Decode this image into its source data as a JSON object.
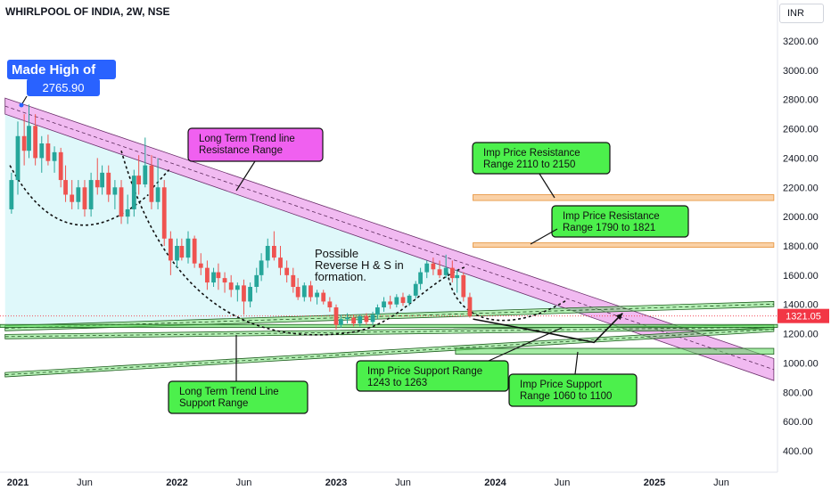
{
  "header": {
    "title": "WHIRLPOOL OF INDIA, 2W, NSE",
    "currency": "INR"
  },
  "colors": {
    "bullish": "#26a69a",
    "bearish": "#ef5350",
    "resistance_channel": "#e066e0",
    "support_channel": "#5bdc5b",
    "resistance_zone": "#f6b26b",
    "cup_fill": "#d4f6f8",
    "label_green": "#4cf04c",
    "label_magenta": "#f060f0",
    "label_blue": "#2962ff",
    "price_tag": "#f23645"
  },
  "chart_data": {
    "type": "candlestick",
    "title": "WHIRLPOOL OF INDIA, 2W, NSE",
    "y_axis_side": "right",
    "ylim": [
      300,
      3400
    ],
    "y_ticks": [
      "400.00",
      "600.00",
      "800.00",
      "1000.00",
      "1200.00",
      "1400.00",
      "1600.00",
      "1800.00",
      "2000.00",
      "2200.00",
      "2400.00",
      "2600.00",
      "2800.00",
      "3000.00",
      "3200.00"
    ],
    "x_ticks": [
      {
        "label": "2021",
        "t": 2021.0
      },
      {
        "label": "Jun",
        "t": 2021.42
      },
      {
        "label": "2022",
        "t": 2022.0
      },
      {
        "label": "Jun",
        "t": 2022.42
      },
      {
        "label": "2023",
        "t": 2023.0
      },
      {
        "label": "Jun",
        "t": 2023.42
      },
      {
        "label": "2024",
        "t": 2024.0
      },
      {
        "label": "Jun",
        "t": 2024.42
      },
      {
        "label": "2025",
        "t": 2025.0
      },
      {
        "label": "Jun",
        "t": 2025.42
      }
    ],
    "last_price": "1321.05",
    "last_price_value": 1321.05,
    "candle_width_years": 0.0383,
    "candles": [
      {
        "t": 2020.96,
        "o": 2050,
        "h": 2300,
        "l": 2020,
        "c": 2250
      },
      {
        "t": 2021.0,
        "o": 2250,
        "h": 2650,
        "l": 2150,
        "c": 2550
      },
      {
        "t": 2021.04,
        "o": 2550,
        "h": 2700,
        "l": 2350,
        "c": 2450
      },
      {
        "t": 2021.07,
        "o": 2450,
        "h": 2766,
        "l": 2400,
        "c": 2620
      },
      {
        "t": 2021.11,
        "o": 2620,
        "h": 2700,
        "l": 2350,
        "c": 2400
      },
      {
        "t": 2021.15,
        "o": 2400,
        "h": 2550,
        "l": 2300,
        "c": 2500
      },
      {
        "t": 2021.19,
        "o": 2500,
        "h": 2560,
        "l": 2350,
        "c": 2380
      },
      {
        "t": 2021.23,
        "o": 2380,
        "h": 2480,
        "l": 2300,
        "c": 2440
      },
      {
        "t": 2021.27,
        "o": 2440,
        "h": 2470,
        "l": 2200,
        "c": 2250
      },
      {
        "t": 2021.3,
        "o": 2250,
        "h": 2350,
        "l": 2100,
        "c": 2150
      },
      {
        "t": 2021.34,
        "o": 2150,
        "h": 2250,
        "l": 2050,
        "c": 2100
      },
      {
        "t": 2021.38,
        "o": 2100,
        "h": 2250,
        "l": 2050,
        "c": 2200
      },
      {
        "t": 2021.42,
        "o": 2200,
        "h": 2250,
        "l": 2000,
        "c": 2050
      },
      {
        "t": 2021.46,
        "o": 2050,
        "h": 2300,
        "l": 2000,
        "c": 2250
      },
      {
        "t": 2021.5,
        "o": 2250,
        "h": 2400,
        "l": 2150,
        "c": 2200
      },
      {
        "t": 2021.53,
        "o": 2200,
        "h": 2350,
        "l": 2150,
        "c": 2300
      },
      {
        "t": 2021.57,
        "o": 2300,
        "h": 2350,
        "l": 2100,
        "c": 2150
      },
      {
        "t": 2021.61,
        "o": 2150,
        "h": 2250,
        "l": 2050,
        "c": 2200
      },
      {
        "t": 2021.65,
        "o": 2200,
        "h": 2250,
        "l": 1950,
        "c": 2000
      },
      {
        "t": 2021.69,
        "o": 2000,
        "h": 2150,
        "l": 1950,
        "c": 2050
      },
      {
        "t": 2021.73,
        "o": 2050,
        "h": 2320,
        "l": 2000,
        "c": 2280
      },
      {
        "t": 2021.76,
        "o": 2280,
        "h": 2420,
        "l": 2150,
        "c": 2220
      },
      {
        "t": 2021.8,
        "o": 2220,
        "h": 2540,
        "l": 2200,
        "c": 2350
      },
      {
        "t": 2021.84,
        "o": 2350,
        "h": 2420,
        "l": 2050,
        "c": 2100
      },
      {
        "t": 2021.88,
        "o": 2100,
        "h": 2400,
        "l": 2050,
        "c": 2200
      },
      {
        "t": 2021.92,
        "o": 2200,
        "h": 2250,
        "l": 1800,
        "c": 1850
      },
      {
        "t": 2021.96,
        "o": 1850,
        "h": 1900,
        "l": 1600,
        "c": 1700
      },
      {
        "t": 2022.0,
        "o": 1700,
        "h": 1850,
        "l": 1650,
        "c": 1800
      },
      {
        "t": 2022.03,
        "o": 1800,
        "h": 1850,
        "l": 1700,
        "c": 1720
      },
      {
        "t": 2022.07,
        "o": 1720,
        "h": 1900,
        "l": 1680,
        "c": 1850
      },
      {
        "t": 2022.11,
        "o": 1850,
        "h": 1870,
        "l": 1650,
        "c": 1680
      },
      {
        "t": 2022.15,
        "o": 1680,
        "h": 1750,
        "l": 1600,
        "c": 1650
      },
      {
        "t": 2022.19,
        "o": 1650,
        "h": 1700,
        "l": 1500,
        "c": 1550
      },
      {
        "t": 2022.23,
        "o": 1550,
        "h": 1650,
        "l": 1520,
        "c": 1620
      },
      {
        "t": 2022.26,
        "o": 1620,
        "h": 1680,
        "l": 1500,
        "c": 1580
      },
      {
        "t": 2022.3,
        "o": 1580,
        "h": 1620,
        "l": 1480,
        "c": 1550
      },
      {
        "t": 2022.34,
        "o": 1550,
        "h": 1600,
        "l": 1450,
        "c": 1500
      },
      {
        "t": 2022.38,
        "o": 1500,
        "h": 1550,
        "l": 1420,
        "c": 1530
      },
      {
        "t": 2022.42,
        "o": 1530,
        "h": 1570,
        "l": 1330,
        "c": 1420
      },
      {
        "t": 2022.46,
        "o": 1420,
        "h": 1550,
        "l": 1380,
        "c": 1520
      },
      {
        "t": 2022.5,
        "o": 1520,
        "h": 1650,
        "l": 1480,
        "c": 1600
      },
      {
        "t": 2022.53,
        "o": 1600,
        "h": 1750,
        "l": 1560,
        "c": 1700
      },
      {
        "t": 2022.57,
        "o": 1700,
        "h": 1850,
        "l": 1650,
        "c": 1800
      },
      {
        "t": 2022.61,
        "o": 1800,
        "h": 1900,
        "l": 1700,
        "c": 1720
      },
      {
        "t": 2022.65,
        "o": 1720,
        "h": 1800,
        "l": 1600,
        "c": 1650
      },
      {
        "t": 2022.69,
        "o": 1650,
        "h": 1700,
        "l": 1550,
        "c": 1600
      },
      {
        "t": 2022.73,
        "o": 1600,
        "h": 1650,
        "l": 1480,
        "c": 1520
      },
      {
        "t": 2022.76,
        "o": 1520,
        "h": 1580,
        "l": 1430,
        "c": 1450
      },
      {
        "t": 2022.8,
        "o": 1450,
        "h": 1550,
        "l": 1420,
        "c": 1530
      },
      {
        "t": 2022.84,
        "o": 1530,
        "h": 1560,
        "l": 1420,
        "c": 1450
      },
      {
        "t": 2022.88,
        "o": 1450,
        "h": 1500,
        "l": 1400,
        "c": 1480
      },
      {
        "t": 2022.92,
        "o": 1480,
        "h": 1500,
        "l": 1400,
        "c": 1420
      },
      {
        "t": 2022.96,
        "o": 1420,
        "h": 1450,
        "l": 1350,
        "c": 1380
      },
      {
        "t": 2023.0,
        "o": 1380,
        "h": 1400,
        "l": 1230,
        "c": 1260
      },
      {
        "t": 2023.03,
        "o": 1260,
        "h": 1330,
        "l": 1240,
        "c": 1300
      },
      {
        "t": 2023.07,
        "o": 1300,
        "h": 1340,
        "l": 1270,
        "c": 1310
      },
      {
        "t": 2023.11,
        "o": 1310,
        "h": 1330,
        "l": 1250,
        "c": 1270
      },
      {
        "t": 2023.15,
        "o": 1270,
        "h": 1330,
        "l": 1250,
        "c": 1320
      },
      {
        "t": 2023.19,
        "o": 1320,
        "h": 1340,
        "l": 1260,
        "c": 1280
      },
      {
        "t": 2023.23,
        "o": 1280,
        "h": 1350,
        "l": 1260,
        "c": 1330
      },
      {
        "t": 2023.26,
        "o": 1330,
        "h": 1400,
        "l": 1300,
        "c": 1380
      },
      {
        "t": 2023.3,
        "o": 1380,
        "h": 1450,
        "l": 1350,
        "c": 1420
      },
      {
        "t": 2023.34,
        "o": 1420,
        "h": 1460,
        "l": 1370,
        "c": 1400
      },
      {
        "t": 2023.38,
        "o": 1400,
        "h": 1470,
        "l": 1380,
        "c": 1450
      },
      {
        "t": 2023.42,
        "o": 1450,
        "h": 1480,
        "l": 1390,
        "c": 1410
      },
      {
        "t": 2023.46,
        "o": 1410,
        "h": 1470,
        "l": 1390,
        "c": 1460
      },
      {
        "t": 2023.5,
        "o": 1460,
        "h": 1560,
        "l": 1440,
        "c": 1540
      },
      {
        "t": 2023.53,
        "o": 1540,
        "h": 1650,
        "l": 1500,
        "c": 1620
      },
      {
        "t": 2023.57,
        "o": 1620,
        "h": 1700,
        "l": 1580,
        "c": 1680
      },
      {
        "t": 2023.61,
        "o": 1680,
        "h": 1720,
        "l": 1600,
        "c": 1640
      },
      {
        "t": 2023.65,
        "o": 1640,
        "h": 1700,
        "l": 1580,
        "c": 1600
      },
      {
        "t": 2023.69,
        "o": 1600,
        "h": 1740,
        "l": 1580,
        "c": 1650
      },
      {
        "t": 2023.73,
        "o": 1650,
        "h": 1700,
        "l": 1550,
        "c": 1580
      },
      {
        "t": 2023.76,
        "o": 1580,
        "h": 1640,
        "l": 1480,
        "c": 1600
      },
      {
        "t": 2023.8,
        "o": 1600,
        "h": 1620,
        "l": 1420,
        "c": 1450
      },
      {
        "t": 2023.84,
        "o": 1450,
        "h": 1480,
        "l": 1310,
        "c": 1321.05
      }
    ],
    "annotations": [
      {
        "id": "made-high",
        "lines": [
          "Made High of",
          "2765.90"
        ]
      },
      {
        "id": "lt-resistance",
        "text": "Long Term Trend line\nResistance Range"
      },
      {
        "id": "possible-hs",
        "text": "Possible\nReverse H & S in\nformation."
      },
      {
        "id": "res-2110",
        "text": "Imp Price Resistance\nRange 2110 to 2150"
      },
      {
        "id": "res-1790",
        "text": "Imp Price Resistance\nRange 1790 to 1821"
      },
      {
        "id": "sup-1243",
        "text": "Imp Price Support Range\n1243 to 1263"
      },
      {
        "id": "sup-1060",
        "text": "Imp Price Support\nRange 1060 to 1100"
      },
      {
        "id": "lt-support",
        "text": "Long Term Trend Line\nSupport Range"
      }
    ],
    "resistance_zones": [
      {
        "low": 2110,
        "high": 2150,
        "t_start": 2023.86,
        "t_end": 2025.75
      },
      {
        "low": 1790,
        "high": 1821,
        "t_start": 2023.86,
        "t_end": 2025.75
      }
    ],
    "support_zones": [
      {
        "low": 1060,
        "high": 1100,
        "t_start": 2023.75,
        "t_end": 2025.75
      }
    ],
    "support_line": {
      "low": 1243,
      "high": 1263
    },
    "trend_resistance_channel": {
      "t1": 2020.92,
      "upper1": 2810,
      "lower1": 2700,
      "t2": 2025.75,
      "upper2": 1030,
      "lower2": 880
    },
    "trend_support_channels": [
      {
        "t1": 2020.92,
        "upper1": 1255,
        "lower1": 1220,
        "t2": 2025.75,
        "upper2": 1420,
        "lower2": 1385
      },
      {
        "t1": 2020.92,
        "upper1": 1195,
        "lower1": 1165,
        "t2": 2025.75,
        "upper2": 1260,
        "lower2": 1230
      },
      {
        "t1": 2020.92,
        "upper1": 935,
        "lower1": 905,
        "t2": 2025.75,
        "upper2": 1245,
        "lower2": 1215
      }
    ],
    "projection_path": [
      {
        "t": 2023.86,
        "v": 1300
      },
      {
        "t": 2024.35,
        "v": 1200
      },
      {
        "t": 2024.62,
        "v": 1140
      },
      {
        "t": 2024.8,
        "v": 1340
      }
    ]
  }
}
